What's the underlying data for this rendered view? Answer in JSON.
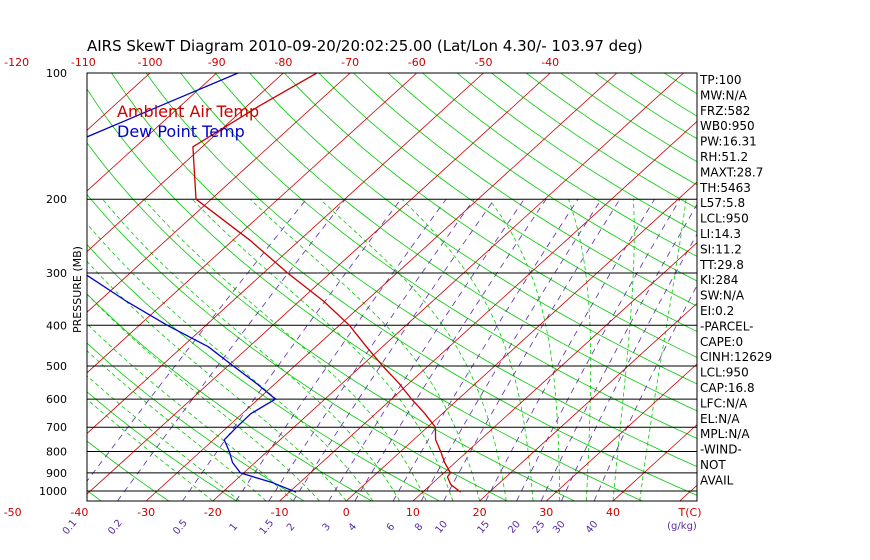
{
  "chart_data": {
    "type": "line",
    "title": "AIRS SkewT Diagram 2010-09-20/20:02:25.00 (Lat/Lon 4.30/- 103.97 deg)",
    "ylabel": "PRESSURE (MB)",
    "xlabel_unit": "T(C)",
    "mixing_ratio_unit": "g/kg",
    "pressure_ticks": [
      100,
      200,
      300,
      400,
      500,
      600,
      700,
      800,
      900,
      1000
    ],
    "top_temperature_ticks": [
      -120,
      -110,
      -100,
      -90,
      -80,
      -70,
      -60,
      -50,
      -40
    ],
    "bottom_temperature_ticks": [
      -50,
      -40,
      -30,
      -20,
      -10,
      0,
      10,
      20,
      30,
      40
    ],
    "mixing_ratio_ticks": [
      "0.1",
      "0.2",
      "0.5",
      "1",
      "1.5",
      "2",
      "3",
      "4",
      "6",
      "8",
      "10",
      "15",
      "20",
      "25",
      "30",
      "40"
    ],
    "colors": {
      "isotherm": "#cc0000",
      "dry_adiabat": "#00cc00",
      "moist_adiabat": "#00cc00",
      "mixing_ratio": "#5a2aa8",
      "pressure_line": "#000000",
      "air_temp": "#cc0000",
      "dew_point": "#0000cc",
      "labels": "#cc0000",
      "stats": "#000000"
    },
    "series": [
      {
        "name": "Ambient Air Temp",
        "points": [
          {
            "p": 100,
            "t": -75.0
          },
          {
            "p": 120,
            "t": -78.2
          },
          {
            "p": 150,
            "t": -81.4
          },
          {
            "p": 200,
            "t": -72.3
          },
          {
            "p": 250,
            "t": -57.6
          },
          {
            "p": 300,
            "t": -46.4
          },
          {
            "p": 350,
            "t": -36.4
          },
          {
            "p": 400,
            "t": -28.5
          },
          {
            "p": 450,
            "t": -22.4
          },
          {
            "p": 500,
            "t": -16.8
          },
          {
            "p": 550,
            "t": -11.5
          },
          {
            "p": 600,
            "t": -7.0
          },
          {
            "p": 650,
            "t": -2.6
          },
          {
            "p": 700,
            "t": 1.2
          },
          {
            "p": 750,
            "t": 3.3
          },
          {
            "p": 800,
            "t": 6.0
          },
          {
            "p": 850,
            "t": 8.4
          },
          {
            "p": 900,
            "t": 11.0
          },
          {
            "p": 920,
            "t": 11.2
          },
          {
            "p": 960,
            "t": 13.0
          },
          {
            "p": 1000,
            "t": 15.7
          }
        ]
      },
      {
        "name": "Dew Point Temp",
        "points": [
          {
            "p": 100,
            "t": -86.8
          },
          {
            "p": 120,
            "t": -93.1
          },
          {
            "p": 150,
            "t": -100.8
          },
          {
            "p": 200,
            "t": -100.8
          },
          {
            "p": 250,
            "t": -87.5
          },
          {
            "p": 300,
            "t": -77.0
          },
          {
            "p": 350,
            "t": -66.0
          },
          {
            "p": 400,
            "t": -55.8
          },
          {
            "p": 450,
            "t": -46.1
          },
          {
            "p": 500,
            "t": -39.2
          },
          {
            "p": 550,
            "t": -32.9
          },
          {
            "p": 600,
            "t": -27.4
          },
          {
            "p": 650,
            "t": -28.7
          },
          {
            "p": 700,
            "t": -28.6
          },
          {
            "p": 750,
            "t": -28.4
          },
          {
            "p": 800,
            "t": -25.7
          },
          {
            "p": 850,
            "t": -23.4
          },
          {
            "p": 900,
            "t": -20.5
          },
          {
            "p": 950,
            "t": -14.0
          },
          {
            "p": 1000,
            "t": -9.0
          }
        ]
      }
    ],
    "stats": [
      "TP:100",
      "MW:N/A",
      "FRZ:582",
      "WB0:950",
      "PW:16.31",
      "RH:51.2",
      "MAXT:28.7",
      "TH:5463",
      "L57:5.8",
      "LCL:950",
      "LI:14.3",
      "SI:11.2",
      "TT:29.8",
      "KI:284",
      "SW:N/A",
      "EI:0.2",
      "-PARCEL-",
      "CAPE:0",
      "CINH:12629",
      "LCL:950",
      "CAP:16.8",
      "LFC:N/A",
      "EL:N/A",
      "MPL:N/A",
      "-WIND-",
      "NOT",
      "AVAIL"
    ]
  }
}
